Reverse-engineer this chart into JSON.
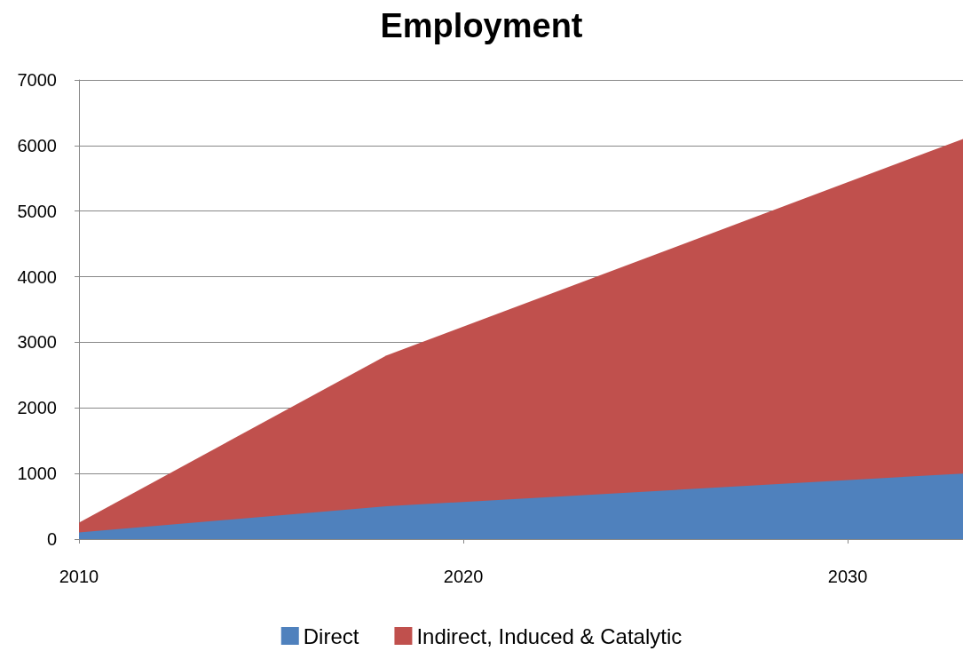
{
  "chart_data": {
    "type": "area",
    "title": "Employment",
    "stacked": true,
    "x": [
      2010,
      2018,
      2033
    ],
    "series": [
      {
        "name": "Direct",
        "color": "#4f81bd",
        "values": [
          100,
          500,
          1000
        ]
      },
      {
        "name": "Indirect, Induced & Catalytic",
        "color": "#c0504d",
        "values": [
          150,
          2300,
          5100
        ]
      }
    ],
    "xlim": [
      2010,
      2033
    ],
    "xticks": [
      2010,
      2020,
      2030
    ],
    "ylim": [
      0,
      7000
    ],
    "yticks": [
      0,
      1000,
      2000,
      3000,
      4000,
      5000,
      6000,
      7000
    ],
    "grid": "y",
    "legend": "bottom"
  }
}
